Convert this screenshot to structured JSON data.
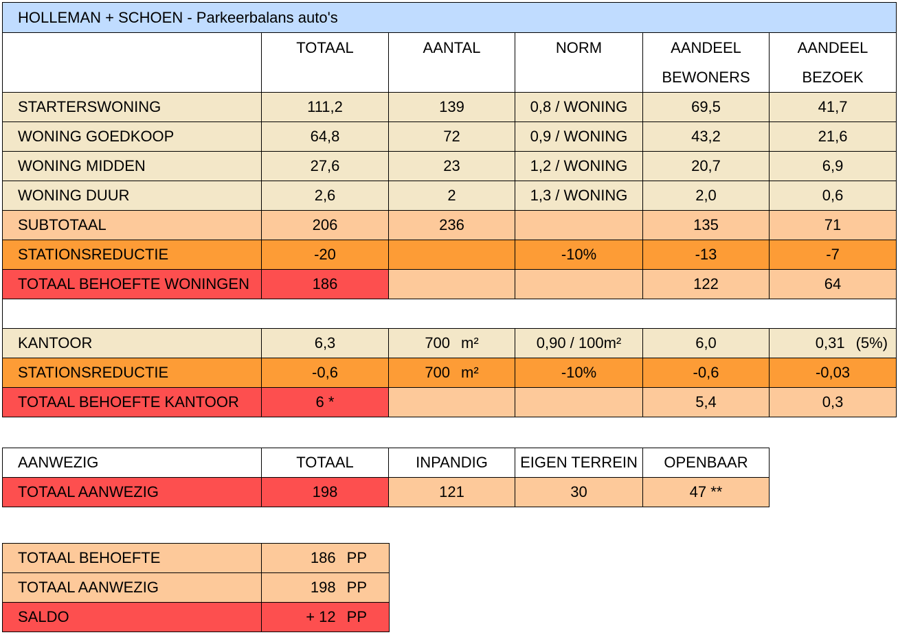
{
  "title": "HOLLEMAN + SCHOEN - Parkeerbalans auto's",
  "main_table": {
    "headers": [
      "",
      "TOTAAL",
      "AANTAL",
      "NORM",
      "AANDEEL",
      "AANDEEL"
    ],
    "headers_line2": [
      "",
      "",
      "",
      "",
      "BEWONERS",
      "BEZOEK"
    ],
    "rows": [
      {
        "label": "STARTERSWONING",
        "totaal": "111,2",
        "aantal": "139",
        "norm": "0,8 / WONING",
        "bewoners": "69,5",
        "bezoek": "41,7"
      },
      {
        "label": "WONING GOEDKOOP",
        "totaal": "64,8",
        "aantal": "72",
        "norm": "0,9 / WONING",
        "bewoners": "43,2",
        "bezoek": "21,6"
      },
      {
        "label": "WONING MIDDEN",
        "totaal": "27,6",
        "aantal": "23",
        "norm": "1,2 / WONING",
        "bewoners": "20,7",
        "bezoek": "6,9"
      },
      {
        "label": "WONING DUUR",
        "totaal": "2,6",
        "aantal": "2",
        "norm": "1,3 / WONING",
        "bewoners": "2,0",
        "bezoek": "0,6"
      }
    ],
    "subtotaal": {
      "label": "SUBTOTAAL",
      "totaal": "206",
      "aantal": "236",
      "norm": "",
      "bewoners": "135",
      "bezoek": "71"
    },
    "stationsreductie": {
      "label": "STATIONSREDUCTIE",
      "totaal": "-20",
      "aantal": "",
      "norm": "-10%",
      "bewoners": "-13",
      "bezoek": "-7"
    },
    "totaal_woningen": {
      "label": "TOTAAL BEHOEFTE WONINGEN",
      "totaal": "186",
      "aantal": "",
      "norm": "",
      "bewoners": "122",
      "bezoek": "64"
    },
    "kantoor": {
      "label": "KANTOOR",
      "totaal": "6,3",
      "aantal_value": "700",
      "aantal_unit": "m²",
      "norm": "0,90 / 100m²",
      "bewoners": "6,0",
      "bezoek": "0,31",
      "bezoek_note": "(5%)"
    },
    "stationsreductie_kantoor": {
      "label": "STATIONSREDUCTIE",
      "totaal": "-0,6",
      "aantal_value": "700",
      "aantal_unit": "m²",
      "norm": "-10%",
      "bewoners": "-0,6",
      "bezoek": "-0,03"
    },
    "totaal_kantoor": {
      "label": "TOTAAL BEHOEFTE KANTOOR",
      "totaal": "6 *",
      "aantal": "",
      "norm": "",
      "bewoners": "5,4",
      "bezoek": "0,3"
    }
  },
  "present_table": {
    "headers": [
      "AANWEZIG",
      "TOTAAL",
      "INPANDIG",
      "EIGEN TERREIN",
      "OPENBAAR"
    ],
    "row": {
      "label": "TOTAAL AANWEZIG",
      "totaal": "198",
      "inpandig": "121",
      "eigen_terrein": "30",
      "openbaar": "47 **"
    }
  },
  "balance_table": {
    "rows": [
      {
        "label": "TOTAAL BEHOEFTE",
        "value": "186",
        "unit": "PP"
      },
      {
        "label": "TOTAAL AANWEZIG",
        "value": "198",
        "unit": "PP"
      },
      {
        "label": "SALDO",
        "value": "+ 12",
        "unit": "PP"
      }
    ]
  },
  "colors": {
    "title_bg": "#c0dcff",
    "beige": "#f3e7c8",
    "peach": "#fdc99a",
    "orange": "#fd9c36",
    "red": "#fd4f4f"
  }
}
